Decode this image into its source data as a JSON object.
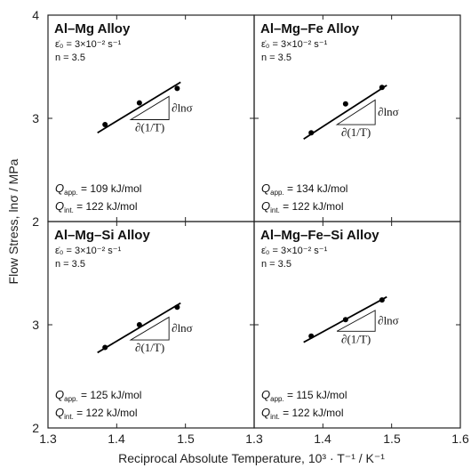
{
  "chart_data": {
    "type": "scatter",
    "xlabel": "Reciprocal Absolute Temperature, 10³ · T⁻¹ / K⁻¹",
    "ylabel": "Flow Stress, lnσ / MPa",
    "x_ticks": [
      "1.3",
      "1.4",
      "1.5",
      "1.3",
      "1.4",
      "1.5",
      "1.6"
    ],
    "y_ticks_top": [
      "4",
      "3",
      "2"
    ],
    "y_ticks_bottom": [
      "3",
      "2"
    ],
    "xlim": [
      1.3,
      1.6
    ],
    "ylim": [
      2,
      4
    ],
    "grid": false,
    "slope_label_horizontal": "∂(1/T)",
    "slope_label_vertical": "∂lnσ",
    "panels": [
      {
        "title": "Al–Mg Alloy",
        "strain_rate": "ε̇₀ = 3×10⁻² s⁻¹",
        "n": "n = 3.5",
        "q_app": "Q_app. = 109 kJ/mol",
        "q_int": "Q_int. = 122 kJ/mol",
        "x": [
          1.383,
          1.433,
          1.488
        ],
        "y": [
          2.94,
          3.15,
          3.29
        ],
        "fit": {
          "x": [
            1.372,
            1.493
          ],
          "y": [
            2.86,
            3.35
          ]
        }
      },
      {
        "title": "Al–Mg–Fe Alloy",
        "strain_rate": "ε̇₀ = 3×10⁻² s⁻¹",
        "n": "n = 3.5",
        "q_app": "Q_app. = 134 kJ/mol",
        "q_int": "Q_int. = 122 kJ/mol",
        "x": [
          1.383,
          1.433,
          1.486
        ],
        "y": [
          2.86,
          3.14,
          3.3
        ],
        "fit": {
          "x": [
            1.372,
            1.493
          ],
          "y": [
            2.8,
            3.32
          ]
        }
      },
      {
        "title": "Al–Mg–Si Alloy",
        "strain_rate": "ε̇₀ = 3×10⁻² s⁻¹",
        "n": "n = 3.5",
        "q_app": "Q_app. = 125 kJ/mol",
        "q_int": "Q_int. = 122 kJ/mol",
        "x": [
          1.383,
          1.433,
          1.488
        ],
        "y": [
          2.78,
          3.0,
          3.17
        ],
        "fit": {
          "x": [
            1.372,
            1.493
          ],
          "y": [
            2.73,
            3.21
          ]
        }
      },
      {
        "title": "Al–Mg–Fe–Si Alloy",
        "strain_rate": "ε̇₀ = 3×10⁻² s⁻¹",
        "n": "n = 3.5",
        "q_app": "Q_app. = 115 kJ/mol",
        "q_int": "Q_int. = 122 kJ/mol",
        "x": [
          1.383,
          1.433,
          1.486
        ],
        "y": [
          2.89,
          3.05,
          3.24
        ],
        "fit": {
          "x": [
            1.372,
            1.493
          ],
          "y": [
            2.83,
            3.27
          ]
        }
      }
    ]
  }
}
